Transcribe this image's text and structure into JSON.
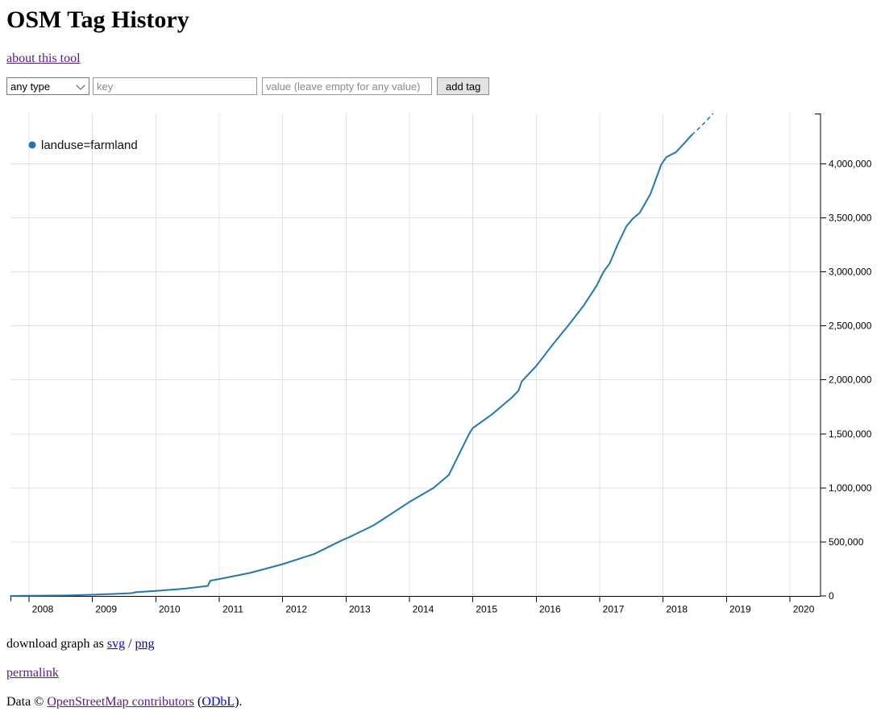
{
  "page": {
    "title": "OSM Tag History",
    "about_link": "about this tool"
  },
  "form": {
    "type_select": {
      "value": "any type"
    },
    "key_input": {
      "placeholder": "key"
    },
    "value_input": {
      "placeholder": "value (leave empty for any value)"
    },
    "add_button": "add tag"
  },
  "chart_data": {
    "type": "line",
    "title": "",
    "xlabel": "",
    "ylabel": "",
    "grid": true,
    "legend_position": "top-left",
    "xlim": [
      2007.71,
      2020.5
    ],
    "ylim": [
      0,
      4465000
    ],
    "legend": [
      {
        "label": "landuse=farmland",
        "color": "#1f77b4"
      }
    ],
    "x_axis": {
      "ticks": [
        2008,
        2009,
        2010,
        2011,
        2012,
        2013,
        2014,
        2015,
        2016,
        2017,
        2018,
        2019,
        2020
      ],
      "tick_labels": [
        "2008",
        "2009",
        "2010",
        "2011",
        "2012",
        "2013",
        "2014",
        "2015",
        "2016",
        "2017",
        "2018",
        "2019",
        "2020"
      ]
    },
    "y_axis": {
      "values": [
        0,
        500000,
        1000000,
        1500000,
        2000000,
        2500000,
        3000000,
        3500000,
        4000000
      ],
      "labels": [
        "0",
        "500,000",
        "1,000,000",
        "1,500,000",
        "2,000,000",
        "2,500,000",
        "3,000,000",
        "3,500,000",
        "4,000,000"
      ]
    },
    "series": [
      {
        "name": "landuse=farmland",
        "color": "#1f77b4",
        "points": [
          [
            2007.71,
            500
          ],
          [
            2008.0,
            2000
          ],
          [
            2008.6,
            5000
          ],
          [
            2009.0,
            12000
          ],
          [
            2009.45,
            22000
          ],
          [
            2009.62,
            27000
          ],
          [
            2009.68,
            35000
          ],
          [
            2010.0,
            47000
          ],
          [
            2010.45,
            68000
          ],
          [
            2010.82,
            94000
          ],
          [
            2010.86,
            142000
          ],
          [
            2011.0,
            157000
          ],
          [
            2011.5,
            216000
          ],
          [
            2012.0,
            295000
          ],
          [
            2012.5,
            390000
          ],
          [
            2012.95,
            520000
          ],
          [
            2013.05,
            545000
          ],
          [
            2013.42,
            650000
          ],
          [
            2013.49,
            675000
          ],
          [
            2014.0,
            870000
          ],
          [
            2014.38,
            1000000
          ],
          [
            2014.62,
            1120000
          ],
          [
            2014.94,
            1500000
          ],
          [
            2015.0,
            1555000
          ],
          [
            2015.3,
            1680000
          ],
          [
            2015.62,
            1840000
          ],
          [
            2015.72,
            1900000
          ],
          [
            2015.77,
            1985000
          ],
          [
            2016.0,
            2130000
          ],
          [
            2016.25,
            2320000
          ],
          [
            2016.5,
            2500000
          ],
          [
            2016.75,
            2690000
          ],
          [
            2016.95,
            2870000
          ],
          [
            2017.06,
            3000000
          ],
          [
            2017.16,
            3080000
          ],
          [
            2017.28,
            3250000
          ],
          [
            2017.42,
            3420000
          ],
          [
            2017.52,
            3490000
          ],
          [
            2017.63,
            3545000
          ],
          [
            2017.8,
            3720000
          ],
          [
            2017.97,
            3990000
          ],
          [
            2018.05,
            4060000
          ],
          [
            2018.13,
            4085000
          ],
          [
            2018.2,
            4105000
          ],
          [
            2018.32,
            4180000
          ],
          [
            2018.45,
            4265000
          ]
        ],
        "projection": [
          [
            2018.45,
            4265000
          ],
          [
            2018.57,
            4330000
          ],
          [
            2018.68,
            4395000
          ],
          [
            2018.79,
            4465000
          ]
        ]
      }
    ]
  },
  "footer": {
    "download_prefix": "download graph as ",
    "svg_link": "svg",
    "separator": " / ",
    "png_link": "png",
    "permalink_link": "permalink",
    "data_prefix": "Data © ",
    "osm_link": "OpenStreetMap contributors",
    "paren_open": " (",
    "odbl_link": "ODbL",
    "paren_close": ")."
  },
  "colors": {
    "series_blue": "#1f77b4",
    "grid": "#e0e0e0",
    "link_unvisited": "#0000EE",
    "link_visited": "#551A8B"
  }
}
